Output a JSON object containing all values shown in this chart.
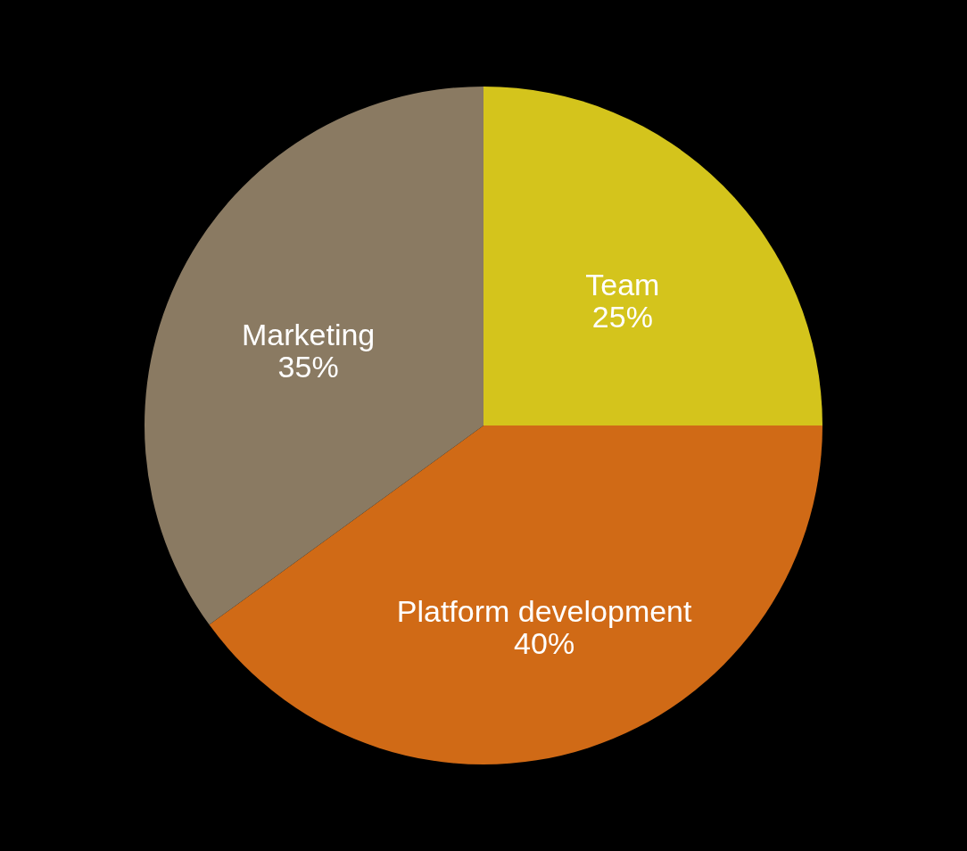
{
  "chart_data": {
    "type": "pie",
    "categories": [
      "Team",
      "Platform development",
      "Marketing"
    ],
    "values": [
      25,
      40,
      35
    ],
    "colors": [
      "#d4c41c",
      "#d06a16",
      "#8a7a62"
    ],
    "value_labels": [
      "25%",
      "40%",
      "35%"
    ],
    "legend": false
  }
}
